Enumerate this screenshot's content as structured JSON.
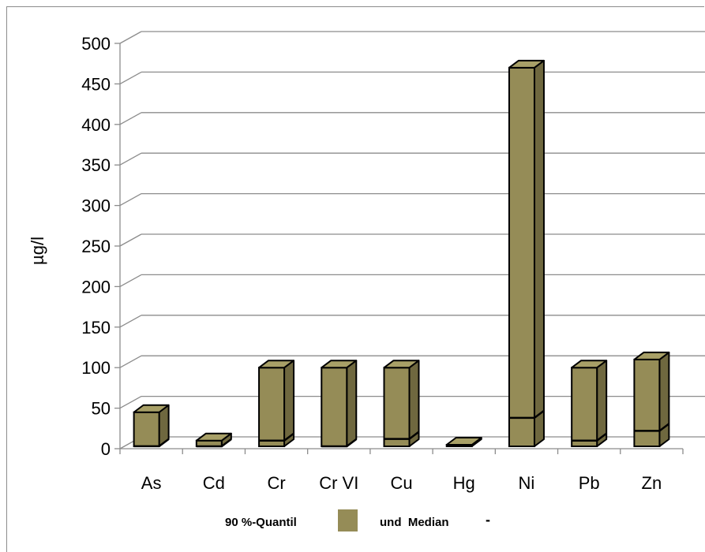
{
  "chart_data": {
    "type": "bar",
    "ylabel": "µg/l",
    "ylim": [
      0,
      500
    ],
    "yticks": [
      0,
      50,
      100,
      150,
      200,
      250,
      300,
      350,
      400,
      450,
      500
    ],
    "grid": true,
    "categories": [
      "As",
      "Cd",
      "Cr",
      "Cr VI",
      "Cu",
      "Hg",
      "Ni",
      "Pb",
      "Zn"
    ],
    "series": [
      {
        "name": "90 %-Quantil",
        "values": [
          45,
          10,
          100,
          100,
          100,
          1,
          470,
          100,
          110
        ]
      },
      {
        "name": "Median",
        "values": [
          3,
          0.5,
          10,
          2,
          12,
          0.1,
          38,
          10,
          22
        ]
      }
    ],
    "legend": {
      "position": "bottom",
      "quantile_label": "90 %-Quantil",
      "median_label": "und  Median",
      "median_marker": "-"
    },
    "colors": {
      "bar_front": "#958c57",
      "bar_top": "#a8a067",
      "bar_side": "#6f683f",
      "outline": "#000000",
      "grid": "#8c8c8c"
    }
  }
}
